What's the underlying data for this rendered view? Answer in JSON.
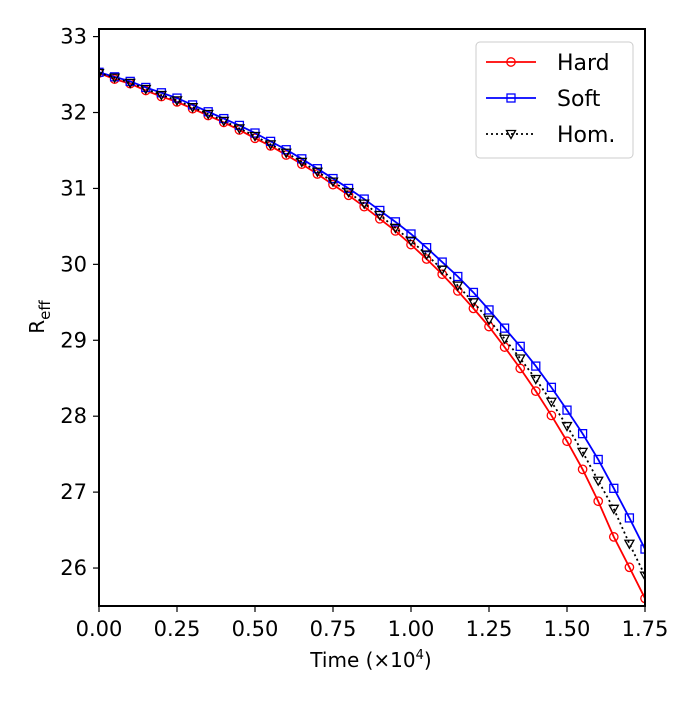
{
  "chart_data": {
    "type": "line",
    "title": "",
    "xlabel": "Time (×10",
    "xlabel_sup": "4",
    "xlabel_end": ")",
    "ylabel": "R",
    "ylabel_sub": "eff",
    "xlim": [
      0,
      1.75
    ],
    "ylim": [
      25.5,
      33.1
    ],
    "x_ticks": [
      "0.00",
      "0.25",
      "0.50",
      "0.75",
      "1.00",
      "1.25",
      "1.50",
      "1.75"
    ],
    "y_ticks": [
      "26",
      "27",
      "28",
      "29",
      "30",
      "31",
      "32",
      "33"
    ],
    "grid": false,
    "legend_position": "top-right",
    "x": [
      0,
      0.05,
      0.1,
      0.15,
      0.2,
      0.25,
      0.3,
      0.35,
      0.4,
      0.45,
      0.5,
      0.55,
      0.6,
      0.65,
      0.7,
      0.75,
      0.8,
      0.85,
      0.9,
      0.95,
      1.0,
      1.05,
      1.1,
      1.15,
      1.2,
      1.25,
      1.3,
      1.35,
      1.4,
      1.45,
      1.5,
      1.55,
      1.6,
      1.65,
      1.7,
      1.75
    ],
    "series": [
      {
        "name": "Hard",
        "color": "#ff0000",
        "marker": "circle",
        "linestyle": "solid",
        "values": [
          32.52,
          32.44,
          32.38,
          32.29,
          32.21,
          32.14,
          32.05,
          31.96,
          31.87,
          31.77,
          31.66,
          31.56,
          31.44,
          31.32,
          31.19,
          31.05,
          30.91,
          30.76,
          30.6,
          30.44,
          30.26,
          30.07,
          29.87,
          29.65,
          29.42,
          29.18,
          28.91,
          28.63,
          28.33,
          28.01,
          27.67,
          27.3,
          26.88,
          26.41,
          26.01,
          25.6
        ]
      },
      {
        "name": "Soft",
        "color": "#0000ff",
        "marker": "square",
        "linestyle": "solid",
        "values": [
          32.53,
          32.47,
          32.41,
          32.33,
          32.26,
          32.19,
          32.1,
          32.01,
          31.92,
          31.83,
          31.73,
          31.62,
          31.51,
          31.39,
          31.26,
          31.13,
          31.0,
          30.86,
          30.71,
          30.56,
          30.4,
          30.22,
          30.03,
          29.84,
          29.63,
          29.4,
          29.16,
          28.92,
          28.66,
          28.38,
          28.08,
          27.77,
          27.43,
          27.05,
          26.66,
          26.25
        ]
      },
      {
        "name": "Hom.",
        "color": "#000000",
        "marker": "triangle-down",
        "linestyle": "dotted",
        "values": [
          32.52,
          32.46,
          32.39,
          32.31,
          32.23,
          32.16,
          32.07,
          31.98,
          31.89,
          31.79,
          31.69,
          31.58,
          31.47,
          31.35,
          31.22,
          31.09,
          30.95,
          30.8,
          30.65,
          30.48,
          30.31,
          30.13,
          29.93,
          29.72,
          29.5,
          29.27,
          29.02,
          28.76,
          28.49,
          28.19,
          27.87,
          27.53,
          27.15,
          26.78,
          26.32,
          25.9
        ]
      }
    ]
  }
}
